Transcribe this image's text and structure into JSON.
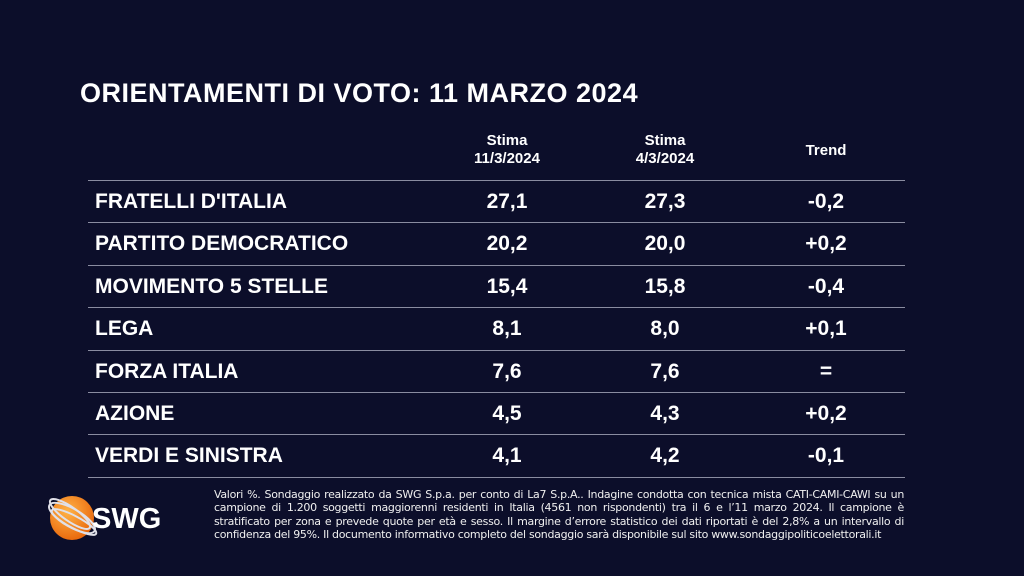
{
  "title": "ORIENTAMENTI DI VOTO: 11 MARZO 2024",
  "chart_data": {
    "type": "table",
    "columns": [
      {
        "line1": "Stima",
        "line2": "11/3/2024"
      },
      {
        "line1": "Stima",
        "line2": "4/3/2024"
      },
      {
        "line1": "Trend",
        "line2": ""
      }
    ],
    "rows": [
      {
        "party": "FRATELLI D'ITALIA",
        "v1": "27,1",
        "v2": "27,3",
        "trend": "-0,2"
      },
      {
        "party": "PARTITO DEMOCRATICO",
        "v1": "20,2",
        "v2": "20,0",
        "trend": "+0,2"
      },
      {
        "party": "MOVIMENTO 5 STELLE",
        "v1": "15,4",
        "v2": "15,8",
        "trend": "-0,4"
      },
      {
        "party": "LEGA",
        "v1": "8,1",
        "v2": "8,0",
        "trend": "+0,1"
      },
      {
        "party": "FORZA ITALIA",
        "v1": "7,6",
        "v2": "7,6",
        "trend": "="
      },
      {
        "party": "AZIONE",
        "v1": "4,5",
        "v2": "4,3",
        "trend": "+0,2"
      },
      {
        "party": "VERDI E SINISTRA",
        "v1": "4,1",
        "v2": "4,2",
        "trend": "-0,1"
      }
    ]
  },
  "footnote": "Valori %. Sondaggio realizzato da SWG S.p.a. per conto di La7 S.p.A.. Indagine condotta con tecnica mista CATI-CAMI-CAWI su un campione di 1.200 soggetti maggiorenni residenti in Italia (4561 non rispondenti) tra il 6 e l’11 marzo 2024. Il campione è stratificato per zona e prevede quote per età e sesso. Il margine d’errore statistico dei dati riportati è del 2,8% a un intervallo di confidenza del 95%. Il documento informativo completo del sondaggio sarà disponibile sul sito www.sondaggipoliticoelettorali.it",
  "logo": {
    "text": "SWG",
    "color": "#f7931e"
  },
  "colors": {
    "background": "#0c0e2a",
    "text": "#ffffff"
  }
}
